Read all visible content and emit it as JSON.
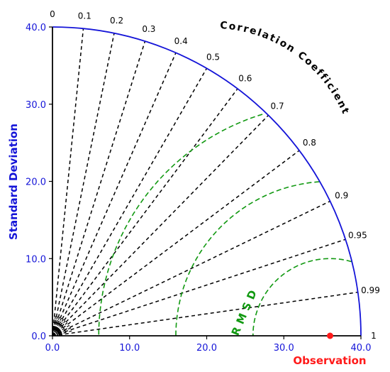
{
  "chart_data": {
    "type": "taylor",
    "ylabel": "Standard Deviation",
    "xlabel": "Observation",
    "arc_title": "Correlation Coefficient",
    "rmsd_label": "RMSD",
    "std_range": [
      0,
      40
    ],
    "std_ticks": [
      "0.0",
      "10.0",
      "20.0",
      "30.0",
      "40.0"
    ],
    "correlation_ticks": [
      "0",
      "0.1",
      "0.2",
      "0.3",
      "0.4",
      "0.5",
      "0.6",
      "0.7",
      "0.8",
      "0.9",
      "0.95",
      "0.99",
      "1"
    ],
    "rmsd_contours": [
      10,
      20,
      30
    ],
    "observation": {
      "std": 36,
      "correlation": 1
    },
    "colors": {
      "axis": "#1414d8",
      "radial_lines": "#000000",
      "rmsd": "#119911",
      "observation": "#ff1a1a"
    }
  }
}
